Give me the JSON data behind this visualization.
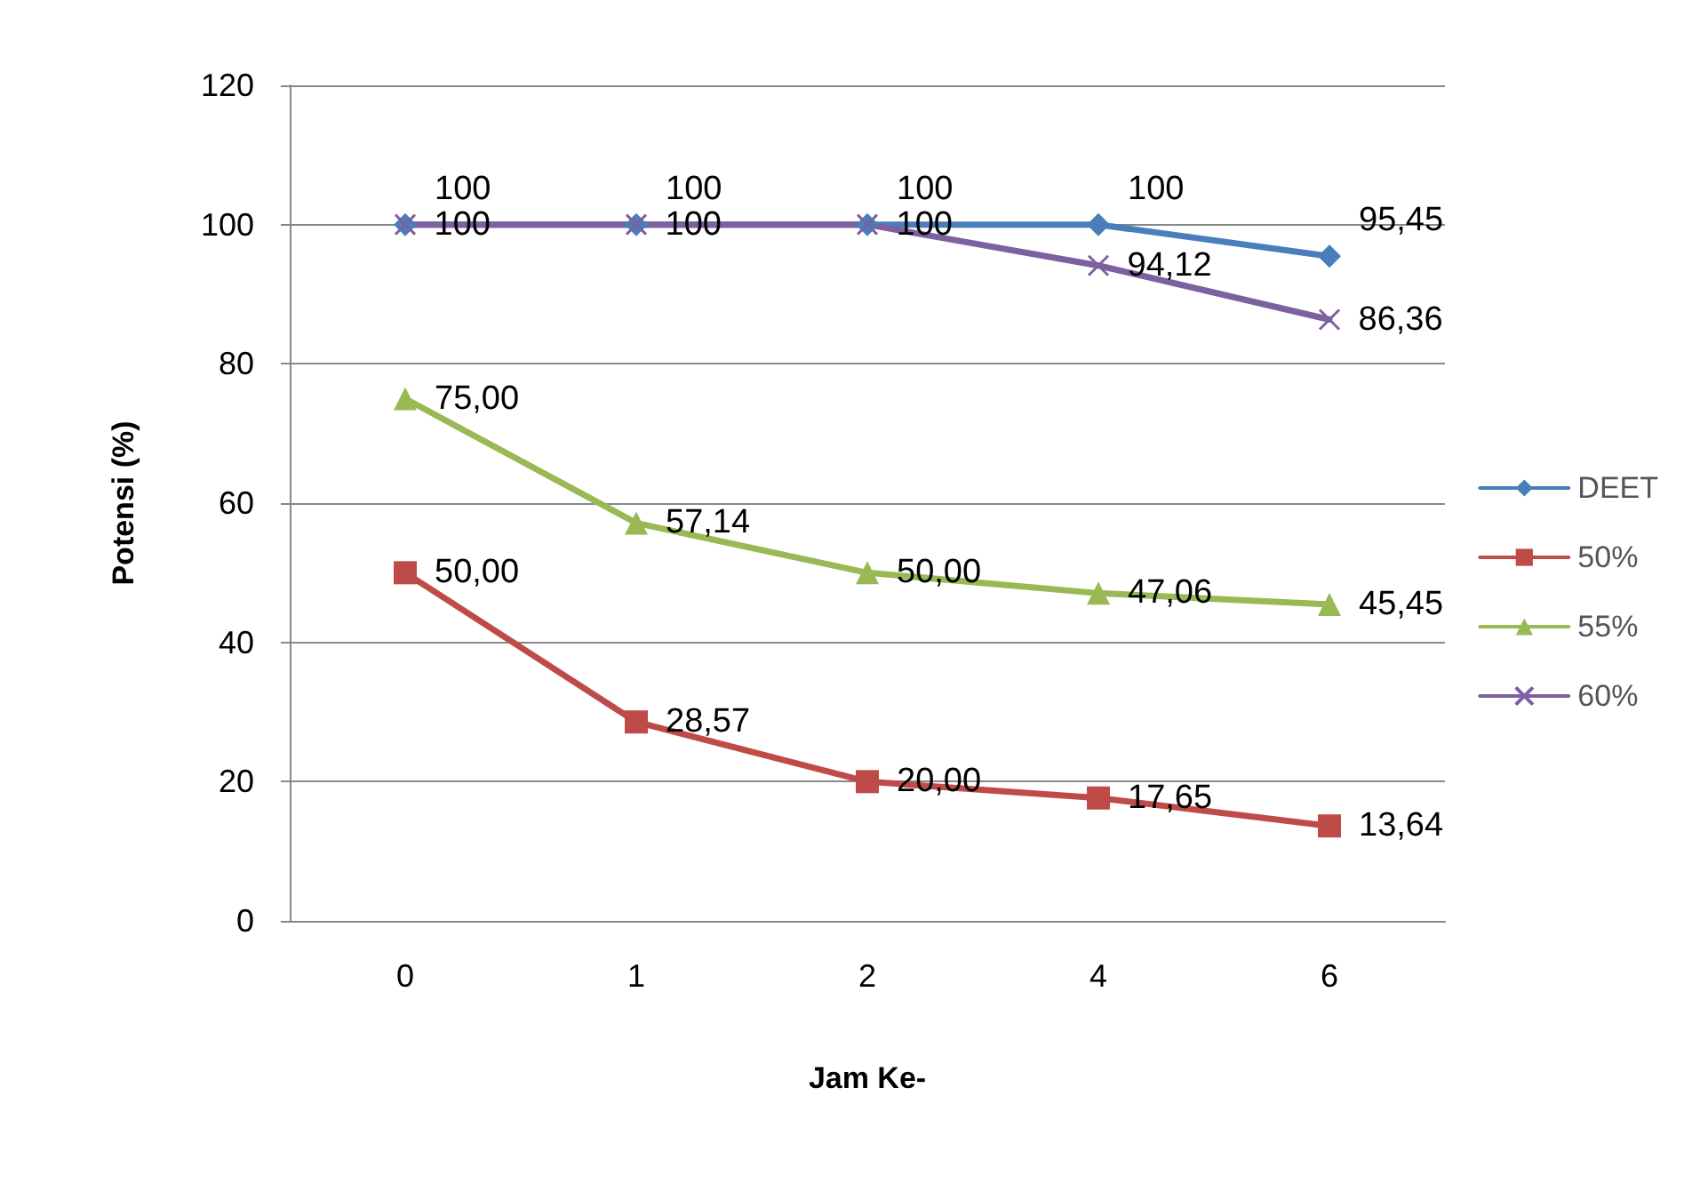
{
  "chart_data": {
    "type": "line",
    "xlabel": "Jam Ke-",
    "ylabel": "Potensi (%)",
    "categories": [
      "0",
      "1",
      "2",
      "4",
      "6"
    ],
    "series": [
      {
        "name": "DEET",
        "color": "#4a7ebb",
        "marker": "diamond",
        "values": [
          100,
          100,
          100,
          100,
          95.45
        ],
        "value_labels": [
          "100",
          "100",
          "100",
          "100",
          "95,45"
        ]
      },
      {
        "name": "50%",
        "color": "#be4b48",
        "marker": "square",
        "values": [
          50,
          28.57,
          20,
          17.65,
          13.64
        ],
        "value_labels": [
          "50,00",
          "28,57",
          "20,00",
          "17,65",
          "13,64"
        ]
      },
      {
        "name": "55%",
        "color": "#98b954",
        "marker": "triangle",
        "values": [
          75,
          57.14,
          50,
          47.06,
          45.45
        ],
        "value_labels": [
          "75,00",
          "57,14",
          "50,00",
          "47,06",
          "45,45"
        ]
      },
      {
        "name": "60%",
        "color": "#7d60a0",
        "marker": "cross",
        "values": [
          100,
          100,
          100,
          94.12,
          86.36
        ],
        "value_labels": [
          "100",
          "100",
          "100",
          "94,12",
          "86,36"
        ]
      }
    ],
    "ylim": [
      0,
      120
    ],
    "yticks": [
      0,
      20,
      40,
      60,
      80,
      100,
      120
    ],
    "grid": "y",
    "legend": "right",
    "line_style": "solid"
  }
}
